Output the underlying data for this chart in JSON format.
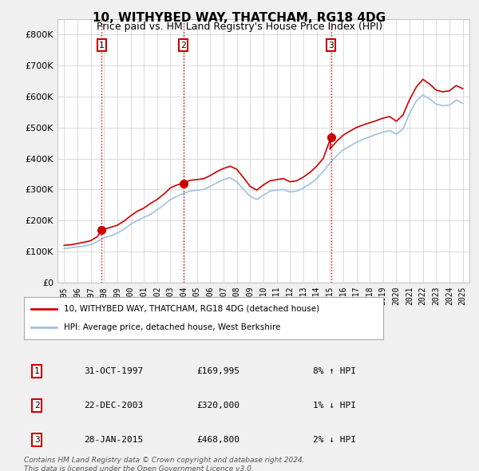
{
  "title": "10, WITHYBED WAY, THATCHAM, RG18 4DG",
  "subtitle": "Price paid vs. HM Land Registry's House Price Index (HPI)",
  "bg_color": "#f0f0f0",
  "plot_bg_color": "#ffffff",
  "red_line_color": "#cc0000",
  "blue_line_color": "#a0c0e0",
  "purchase_dates": [
    1997.83,
    2003.97,
    2015.08
  ],
  "purchase_prices": [
    169995,
    320000,
    468800
  ],
  "purchase_labels": [
    "1",
    "2",
    "3"
  ],
  "vline_color": "#cc0000",
  "hpi_red_data": {
    "years": [
      1995.0,
      1995.5,
      1996.0,
      1996.5,
      1997.0,
      1997.5,
      1997.83,
      1998.0,
      1998.5,
      1999.0,
      1999.5,
      2000.0,
      2000.5,
      2001.0,
      2001.5,
      2002.0,
      2002.5,
      2003.0,
      2003.5,
      2003.97,
      2004.0,
      2004.5,
      2005.0,
      2005.5,
      2006.0,
      2006.5,
      2007.0,
      2007.5,
      2008.0,
      2008.5,
      2009.0,
      2009.5,
      2010.0,
      2010.5,
      2011.0,
      2011.5,
      2012.0,
      2012.5,
      2013.0,
      2013.5,
      2014.0,
      2014.5,
      2015.08,
      2015.0,
      2015.5,
      2016.0,
      2016.5,
      2017.0,
      2017.5,
      2018.0,
      2018.5,
      2019.0,
      2019.5,
      2020.0,
      2020.5,
      2021.0,
      2021.5,
      2022.0,
      2022.5,
      2023.0,
      2023.5,
      2024.0,
      2024.5,
      2025.0
    ],
    "values": [
      120000,
      122000,
      126000,
      130000,
      135000,
      148000,
      169995,
      172000,
      178000,
      185000,
      198000,
      215000,
      230000,
      240000,
      255000,
      268000,
      285000,
      305000,
      315000,
      320000,
      322000,
      330000,
      332000,
      335000,
      345000,
      358000,
      368000,
      375000,
      365000,
      338000,
      310000,
      298000,
      315000,
      328000,
      332000,
      335000,
      325000,
      328000,
      340000,
      355000,
      375000,
      400000,
      468800,
      430000,
      455000,
      475000,
      488000,
      500000,
      508000,
      515000,
      522000,
      530000,
      535000,
      520000,
      540000,
      590000,
      630000,
      655000,
      640000,
      620000,
      615000,
      618000,
      635000,
      625000
    ]
  },
  "hpi_blue_data": {
    "years": [
      1995.0,
      1995.5,
      1996.0,
      1996.5,
      1997.0,
      1997.5,
      1998.0,
      1998.5,
      1999.0,
      1999.5,
      2000.0,
      2000.5,
      2001.0,
      2001.5,
      2002.0,
      2002.5,
      2003.0,
      2003.5,
      2004.0,
      2004.5,
      2005.0,
      2005.5,
      2006.0,
      2006.5,
      2007.0,
      2007.5,
      2008.0,
      2008.5,
      2009.0,
      2009.5,
      2010.0,
      2010.5,
      2011.0,
      2011.5,
      2012.0,
      2012.5,
      2013.0,
      2013.5,
      2014.0,
      2014.5,
      2015.0,
      2015.5,
      2016.0,
      2016.5,
      2017.0,
      2017.5,
      2018.0,
      2018.5,
      2019.0,
      2019.5,
      2020.0,
      2020.5,
      2021.0,
      2021.5,
      2022.0,
      2022.5,
      2023.0,
      2023.5,
      2024.0,
      2024.5,
      2025.0
    ],
    "values": [
      110000,
      112000,
      115000,
      118000,
      122000,
      132000,
      145000,
      150000,
      160000,
      172000,
      188000,
      200000,
      210000,
      220000,
      235000,
      250000,
      268000,
      278000,
      288000,
      295000,
      298000,
      300000,
      310000,
      322000,
      332000,
      338000,
      325000,
      300000,
      278000,
      268000,
      282000,
      295000,
      298000,
      300000,
      292000,
      295000,
      305000,
      318000,
      335000,
      358000,
      385000,
      408000,
      428000,
      440000,
      452000,
      462000,
      470000,
      478000,
      485000,
      490000,
      478000,
      495000,
      545000,
      585000,
      605000,
      592000,
      575000,
      570000,
      572000,
      588000,
      578000
    ]
  },
  "table_data": [
    [
      "1",
      "31-OCT-1997",
      "£169,995",
      "8% ↑ HPI"
    ],
    [
      "2",
      "22-DEC-2003",
      "£320,000",
      "1% ↓ HPI"
    ],
    [
      "3",
      "28-JAN-2015",
      "£468,800",
      "2% ↓ HPI"
    ]
  ],
  "legend_red_label": "10, WITHYBED WAY, THATCHAM, RG18 4DG (detached house)",
  "legend_blue_label": "HPI: Average price, detached house, West Berkshire",
  "footer_text": "Contains HM Land Registry data © Crown copyright and database right 2024.\nThis data is licensed under the Open Government Licence v3.0.",
  "xmin": 1994.5,
  "xmax": 2025.5,
  "ymin": 0,
  "ymax": 850000,
  "yticks": [
    0,
    100000,
    200000,
    300000,
    400000,
    500000,
    600000,
    700000,
    800000
  ],
  "ytick_labels": [
    "£0",
    "£100K",
    "£200K",
    "£300K",
    "£400K",
    "£500K",
    "£600K",
    "£700K",
    "£800K"
  ],
  "xticks": [
    1995,
    1996,
    1997,
    1998,
    1999,
    2000,
    2001,
    2002,
    2003,
    2004,
    2005,
    2006,
    2007,
    2008,
    2009,
    2010,
    2011,
    2012,
    2013,
    2014,
    2015,
    2016,
    2017,
    2018,
    2019,
    2020,
    2021,
    2022,
    2023,
    2024,
    2025
  ]
}
